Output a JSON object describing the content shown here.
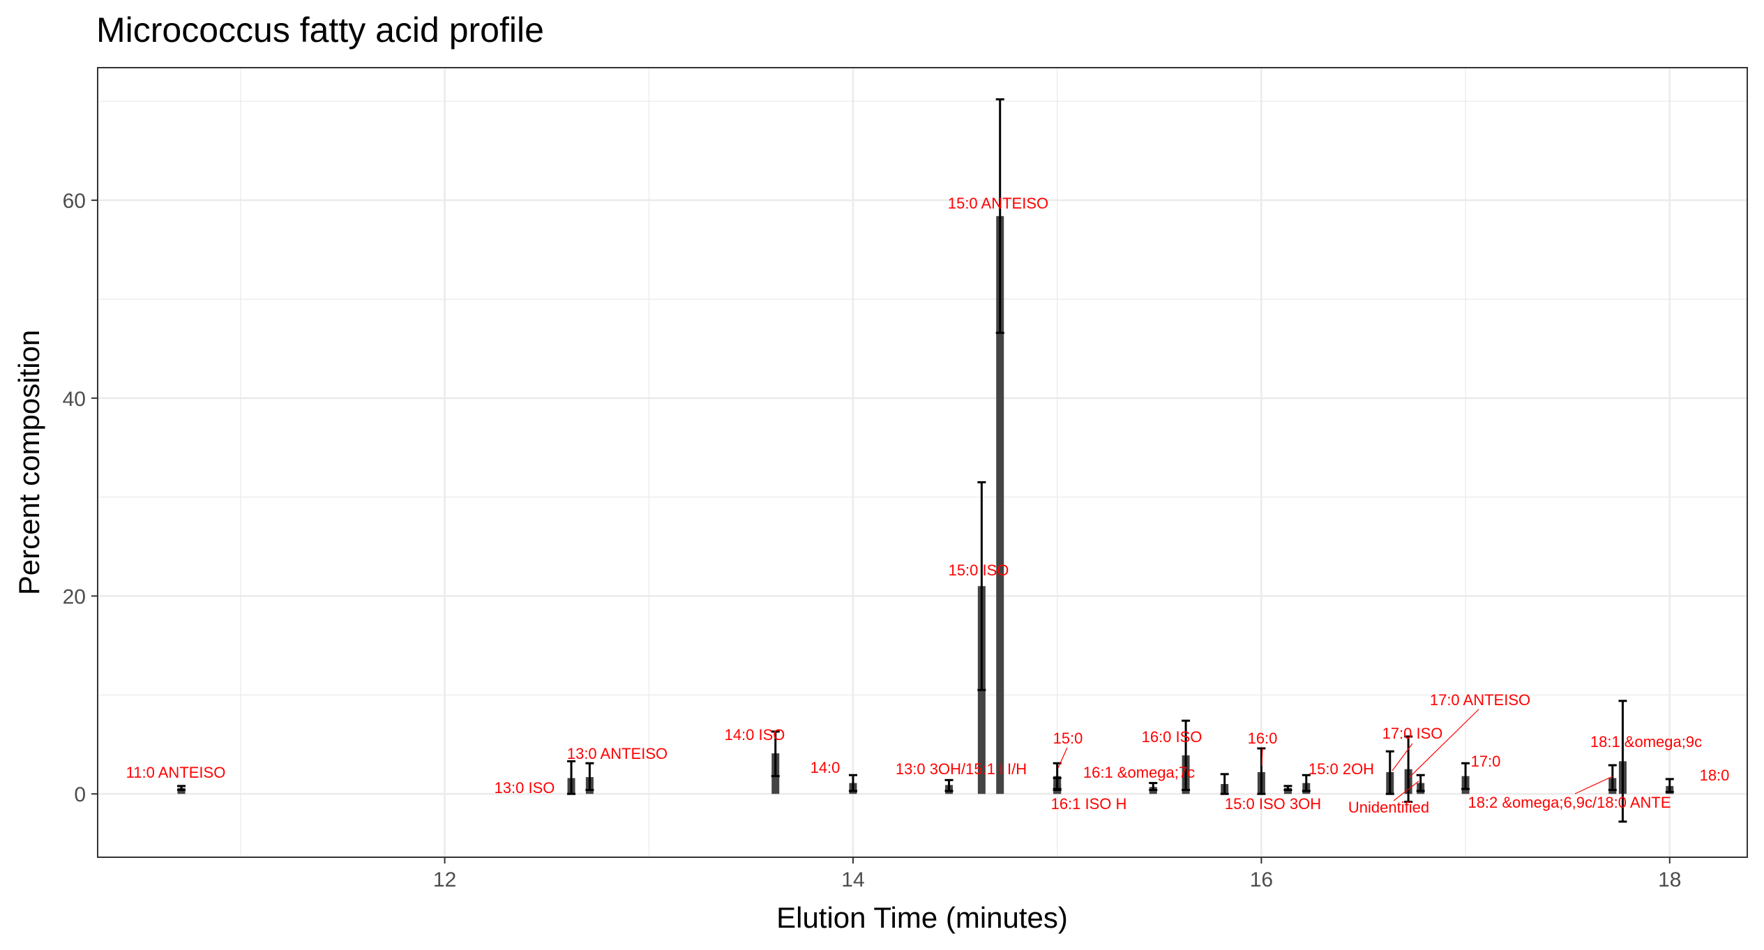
{
  "chart_data": {
    "type": "bar",
    "title": "Micrococcus fatty acid profile",
    "xlabel": "Elution Time (minutes)",
    "ylabel": "Percent composition",
    "xlim": [
      10.3,
      18.38
    ],
    "ylim": [
      -6.4,
      73.4
    ],
    "x_ticks": [
      12,
      14,
      16,
      18
    ],
    "y_ticks": [
      0,
      20,
      40,
      60
    ],
    "grid": true,
    "legend": "none",
    "colors": {
      "bar": "#444444",
      "error": "#000000",
      "label": "#ff0000",
      "grid": "#ebebeb",
      "panel_border": "#333333"
    },
    "points": [
      {
        "label": "11:0 ANTEISO",
        "time": 10.71,
        "value": 0.6,
        "err_low": 0.4,
        "err_high": 0.8
      },
      {
        "label": "13:0 ISO",
        "time": 12.62,
        "value": 1.6,
        "err_low": 0.0,
        "err_high": 3.3
      },
      {
        "label": "13:0 ANTEISO",
        "time": 12.71,
        "value": 1.7,
        "err_low": 0.4,
        "err_high": 3.1
      },
      {
        "label": "14:0 ISO",
        "time": 13.62,
        "value": 4.1,
        "err_low": 1.8,
        "err_high": 6.3
      },
      {
        "label": "14:0",
        "time": 14.0,
        "value": 1.1,
        "err_low": 0.3,
        "err_high": 1.9
      },
      {
        "label": "13:0 3OH/15:1 i I/H",
        "time": 14.47,
        "value": 0.9,
        "err_low": 0.3,
        "err_high": 1.4
      },
      {
        "label": "15:0 ISO",
        "time": 14.63,
        "value": 21.0,
        "err_low": 10.5,
        "err_high": 31.5
      },
      {
        "label": "15:0 ANTEISO",
        "time": 14.72,
        "value": 58.4,
        "err_low": 46.6,
        "err_high": 70.2
      },
      {
        "label": "15:0",
        "time": 15.0,
        "value": 1.8,
        "err_low": 0.5,
        "err_high": 3.1
      },
      {
        "label": "16:1 ISO H",
        "time": 15.0,
        "value": 1.0,
        "err_low": 0.4,
        "err_high": 1.6
      },
      {
        "label": "16:1 &omega;7c",
        "time": 15.47,
        "value": 0.7,
        "err_low": 0.4,
        "err_high": 1.1
      },
      {
        "label": "16:0 ISO",
        "time": 15.63,
        "value": 3.9,
        "err_low": 0.4,
        "err_high": 7.4
      },
      {
        "label": "15:0 ISO 3OH",
        "time": 15.82,
        "value": 1.0,
        "err_low": 0.0,
        "err_high": 2.0
      },
      {
        "label": "16:0",
        "time": 16.0,
        "value": 2.2,
        "err_low": 0.0,
        "err_high": 4.6
      },
      {
        "label": "15:0 2OH",
        "time": 16.22,
        "value": 1.1,
        "err_low": 0.3,
        "err_high": 1.9
      },
      {
        "label": "",
        "time": 16.13,
        "value": 0.6,
        "err_low": 0.4,
        "err_high": 0.8
      },
      {
        "label": "17:0 ISO",
        "time": 16.63,
        "value": 2.2,
        "err_low": 0.0,
        "err_high": 4.3
      },
      {
        "label": "17:0 ANTEISO",
        "time": 16.72,
        "value": 2.5,
        "err_low": -0.8,
        "err_high": 5.8
      },
      {
        "label": "Unidentified",
        "time": 16.78,
        "value": 1.1,
        "err_low": 0.3,
        "err_high": 1.9
      },
      {
        "label": "17:0",
        "time": 17.0,
        "value": 1.8,
        "err_low": 0.5,
        "err_high": 3.1
      },
      {
        "label": "18:2 &omega;6,9c/18:0 ANTE",
        "time": 17.72,
        "value": 1.6,
        "err_low": 0.4,
        "err_high": 2.9
      },
      {
        "label": "18:1 &omega;9c",
        "time": 17.77,
        "value": 3.3,
        "err_low": -2.8,
        "err_high": 9.4
      },
      {
        "label": "18:0",
        "time": 18.0,
        "value": 0.8,
        "err_low": 0.2,
        "err_high": 1.5
      }
    ]
  }
}
